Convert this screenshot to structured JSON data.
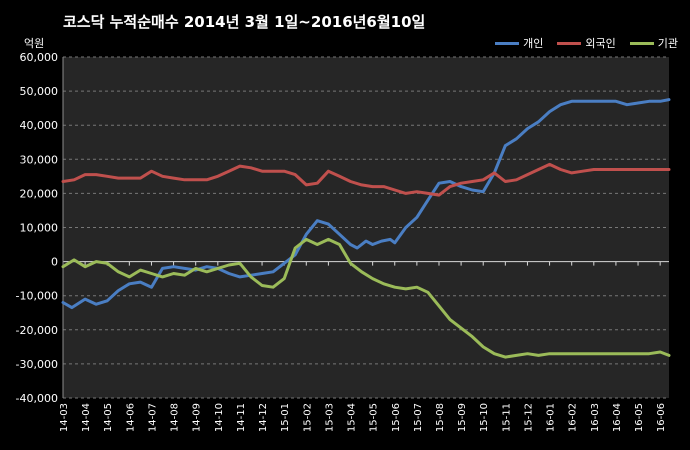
{
  "chart_data": {
    "type": "line",
    "title": "코스닥  누적순매수 2014년 3월 1일~2016년6월10일",
    "ylabel": "억원",
    "xlabel": "",
    "ylim": [
      -40000,
      60000
    ],
    "yticks": [
      "60,000",
      "50,000",
      "40,000",
      "30,000",
      "20,000",
      "10,000",
      "0",
      "-10,000",
      "-20,000",
      "-30,000",
      "-40,000"
    ],
    "grid": true,
    "legend_position": "top-right",
    "categories": [
      "14-03",
      "14-04",
      "14-05",
      "14-06",
      "14-07",
      "14-08",
      "14-09",
      "14-10",
      "14-11",
      "14-12",
      "15-01",
      "15-02",
      "15-03",
      "15-04",
      "15-05",
      "15-06",
      "15-07",
      "15-08",
      "15-09",
      "15-10",
      "15-11",
      "15-12",
      "16-01",
      "16-02",
      "16-03",
      "16-04",
      "16-05",
      "16-06"
    ],
    "x_extent": [
      0,
      27.4
    ],
    "series": [
      {
        "name": "개인",
        "color": "#4a7ec3",
        "x": [
          0,
          0.4,
          1,
          1.5,
          2,
          2.5,
          3,
          3.5,
          4,
          4.5,
          5,
          5.5,
          6,
          6.5,
          7,
          7.5,
          8,
          8.5,
          9,
          9.5,
          10,
          10.5,
          11,
          11.5,
          12,
          12.5,
          13,
          13.3,
          13.7,
          14,
          14.4,
          14.8,
          15,
          15.5,
          16,
          16.5,
          17,
          17.5,
          18,
          18.5,
          19,
          19.5,
          20,
          20.5,
          21,
          21.5,
          22,
          22.5,
          23,
          23.5,
          24,
          24.5,
          25,
          25.5,
          26,
          26.5,
          27,
          27.4
        ],
        "values": [
          -12000,
          -13500,
          -11000,
          -12500,
          -11500,
          -8500,
          -6500,
          -6000,
          -7500,
          -2000,
          -1500,
          -2000,
          -2500,
          -1500,
          -2000,
          -3500,
          -4500,
          -4000,
          -3500,
          -3000,
          -500,
          2000,
          8000,
          12000,
          11000,
          8000,
          5000,
          4000,
          6000,
          5000,
          6000,
          6500,
          5500,
          10000,
          13000,
          18000,
          23000,
          23500,
          22000,
          21000,
          20500,
          26000,
          34000,
          36000,
          39000,
          41000,
          44000,
          46000,
          47000,
          47000,
          47000,
          47000,
          47000,
          46000,
          46500,
          47000,
          47000,
          47500
        ],
        "x_note": "approx"
      },
      {
        "name": "외국인",
        "color": "#c0504d",
        "x": [
          0,
          0.5,
          1,
          1.5,
          2,
          2.5,
          3,
          3.5,
          4,
          4.5,
          5,
          5.5,
          6,
          6.5,
          7,
          7.5,
          8,
          8.5,
          9,
          9.5,
          10,
          10.5,
          11,
          11.5,
          12,
          12.5,
          13,
          13.5,
          14,
          14.5,
          15,
          15.5,
          16,
          16.5,
          17,
          17.5,
          18,
          18.5,
          19,
          19.5,
          20,
          20.5,
          21,
          21.5,
          22,
          22.5,
          23,
          23.5,
          24,
          24.5,
          25,
          25.5,
          26,
          26.5,
          27,
          27.4
        ],
        "values": [
          23500,
          24000,
          25500,
          25500,
          25000,
          24500,
          24500,
          24500,
          26500,
          25000,
          24500,
          24000,
          24000,
          24000,
          25000,
          26500,
          28000,
          27500,
          26500,
          26500,
          26500,
          25500,
          22500,
          23000,
          26500,
          25000,
          23500,
          22500,
          22000,
          22000,
          21000,
          20000,
          20500,
          20000,
          19500,
          22000,
          23000,
          23500,
          24000,
          26000,
          23500,
          24000,
          25500,
          27000,
          28500,
          27000,
          26000,
          26500,
          27000,
          27000,
          27000,
          27000,
          27000,
          27000,
          27000,
          27000
        ]
      },
      {
        "name": "기관",
        "color": "#9bbb59",
        "x": [
          0,
          0.5,
          1,
          1.5,
          2,
          2.5,
          3,
          3.5,
          4,
          4.5,
          5,
          5.5,
          6,
          6.5,
          7,
          7.5,
          8,
          8.5,
          9,
          9.5,
          10,
          10.5,
          11,
          11.5,
          12,
          12.5,
          13,
          13.5,
          14,
          14.5,
          15,
          15.5,
          16,
          16.5,
          17,
          17.5,
          18,
          18.5,
          19,
          19.5,
          20,
          20.5,
          21,
          21.5,
          22,
          22.5,
          23,
          23.5,
          24,
          24.5,
          25,
          25.5,
          26,
          26.5,
          27,
          27.4
        ],
        "values": [
          -1500,
          500,
          -1500,
          0,
          -500,
          -3000,
          -4500,
          -2500,
          -3500,
          -4500,
          -3500,
          -4000,
          -2000,
          -3000,
          -2000,
          -1000,
          -500,
          -4500,
          -7000,
          -7500,
          -5000,
          4000,
          6500,
          5000,
          6500,
          5000,
          -500,
          -3000,
          -5000,
          -6500,
          -7500,
          -8000,
          -7500,
          -9000,
          -13000,
          -17000,
          -19500,
          -22000,
          -25000,
          -27000,
          -28000,
          -27500,
          -27000,
          -27500,
          -27000,
          -27000,
          -27000,
          -27000,
          -27000,
          -27000,
          -27000,
          -27000,
          -27000,
          -27000,
          -26500,
          -27500
        ]
      }
    ]
  }
}
